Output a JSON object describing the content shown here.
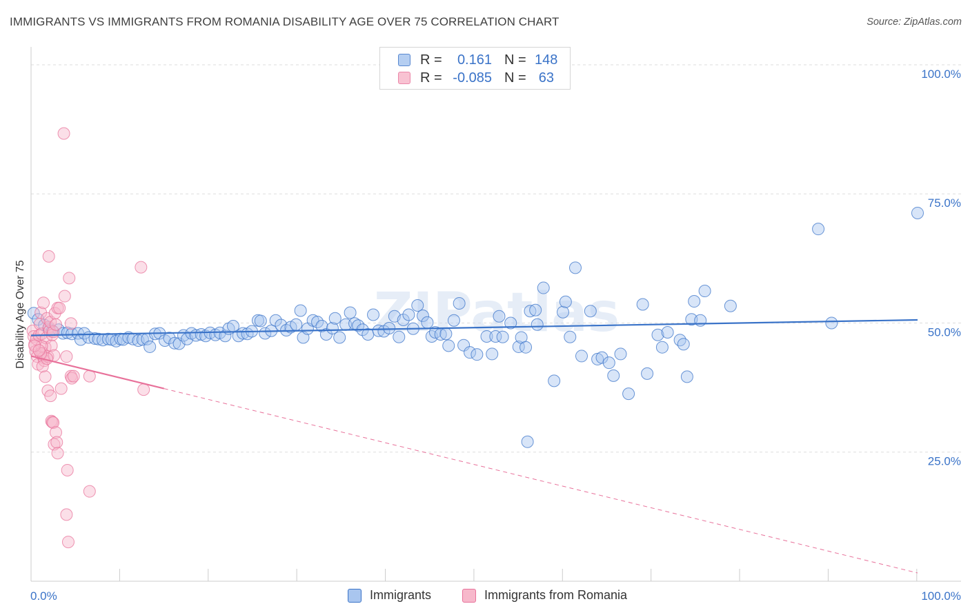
{
  "header": {
    "title": "IMMIGRANTS VS IMMIGRANTS FROM ROMANIA DISABILITY AGE OVER 75 CORRELATION CHART",
    "source": "Source: ZipAtlas.com"
  },
  "legend_stats": {
    "row1": {
      "r_label": "R =",
      "r_value": "0.161",
      "n_label": "N =",
      "n_value": "148"
    },
    "row2": {
      "r_label": "R =",
      "r_value": "-0.085",
      "n_label": "N =",
      "n_value": "63"
    }
  },
  "colors": {
    "blue": "#3a73c8",
    "blue_fill": "#a9c6ef",
    "pink": "#e8719a",
    "pink_fill": "#f7b8cb",
    "grid": "#dddddd",
    "axis_text": "#3a73c8"
  },
  "chart_data": {
    "type": "scatter",
    "title": "IMMIGRANTS VS IMMIGRANTS FROM ROMANIA DISABILITY AGE OVER 75 CORRELATION CHART",
    "xlabel": "",
    "ylabel": "Disability Age Over 75",
    "xlim": [
      0,
      100
    ],
    "ylim": [
      0,
      102
    ],
    "x_tick_labels": [
      "0.0%",
      "100.0%"
    ],
    "y_tick_labels": [
      "25.0%",
      "50.0%",
      "75.0%",
      "100.0%"
    ],
    "y_ticks": [
      25,
      50,
      75,
      100
    ],
    "grid": true,
    "legend_position": "bottom",
    "series": [
      {
        "name": "Immigrants",
        "color": "#3a73c8",
        "trend": {
          "x": [
            0,
            100
          ],
          "y": [
            47.6,
            50.6
          ],
          "dashed_from": null
        },
        "points": [
          [
            0.3,
            51.9
          ],
          [
            0.8,
            50.7
          ],
          [
            1.5,
            49.6
          ],
          [
            2.0,
            48.9
          ],
          [
            2.4,
            48.5
          ],
          [
            3.1,
            48.7
          ],
          [
            3.6,
            48.0
          ],
          [
            4.1,
            48.1
          ],
          [
            4.6,
            47.9
          ],
          [
            5.3,
            48.0
          ],
          [
            5.6,
            46.8
          ],
          [
            6.0,
            48.0
          ],
          [
            6.5,
            47.2
          ],
          [
            7.2,
            47.0
          ],
          [
            7.6,
            46.9
          ],
          [
            8.1,
            46.7
          ],
          [
            8.7,
            46.9
          ],
          [
            9.1,
            46.8
          ],
          [
            9.6,
            46.5
          ],
          [
            10.1,
            46.9
          ],
          [
            10.4,
            46.8
          ],
          [
            11.0,
            47.2
          ],
          [
            11.5,
            46.9
          ],
          [
            12.1,
            46.6
          ],
          [
            12.6,
            46.8
          ],
          [
            13.1,
            46.9
          ],
          [
            13.4,
            45.4
          ],
          [
            14.0,
            47.9
          ],
          [
            14.5,
            48.0
          ],
          [
            15.1,
            46.6
          ],
          [
            15.6,
            47.1
          ],
          [
            16.2,
            46.1
          ],
          [
            16.7,
            46.0
          ],
          [
            17.2,
            47.6
          ],
          [
            17.6,
            46.9
          ],
          [
            18.1,
            48.0
          ],
          [
            18.6,
            47.6
          ],
          [
            19.2,
            47.8
          ],
          [
            19.7,
            47.5
          ],
          [
            20.2,
            48.1
          ],
          [
            20.8,
            47.7
          ],
          [
            21.3,
            48.1
          ],
          [
            21.9,
            47.5
          ],
          [
            22.3,
            48.9
          ],
          [
            22.8,
            49.4
          ],
          [
            23.4,
            47.5
          ],
          [
            23.9,
            48.0
          ],
          [
            24.4,
            47.9
          ],
          [
            24.9,
            48.4
          ],
          [
            25.6,
            50.5
          ],
          [
            25.9,
            50.4
          ],
          [
            26.4,
            48.0
          ],
          [
            27.1,
            48.5
          ],
          [
            27.6,
            50.5
          ],
          [
            28.2,
            49.6
          ],
          [
            28.8,
            48.6
          ],
          [
            29.3,
            49.2
          ],
          [
            29.9,
            49.7
          ],
          [
            30.4,
            52.4
          ],
          [
            30.7,
            47.2
          ],
          [
            31.2,
            48.9
          ],
          [
            31.8,
            50.5
          ],
          [
            32.3,
            50.2
          ],
          [
            32.8,
            49.4
          ],
          [
            33.3,
            47.8
          ],
          [
            34.0,
            49.0
          ],
          [
            34.3,
            50.9
          ],
          [
            34.8,
            47.2
          ],
          [
            35.5,
            49.7
          ],
          [
            36.0,
            52.0
          ],
          [
            36.5,
            49.9
          ],
          [
            36.9,
            49.5
          ],
          [
            37.4,
            48.7
          ],
          [
            38.0,
            47.8
          ],
          [
            38.6,
            51.6
          ],
          [
            39.2,
            48.5
          ],
          [
            39.8,
            48.4
          ],
          [
            40.4,
            49.0
          ],
          [
            41.0,
            51.3
          ],
          [
            41.5,
            47.3
          ],
          [
            42.0,
            50.6
          ],
          [
            42.6,
            51.6
          ],
          [
            43.1,
            48.9
          ],
          [
            43.6,
            53.4
          ],
          [
            44.2,
            51.4
          ],
          [
            44.7,
            50.1
          ],
          [
            45.2,
            47.4
          ],
          [
            45.6,
            48.2
          ],
          [
            46.2,
            47.8
          ],
          [
            46.8,
            47.9
          ],
          [
            47.1,
            45.6
          ],
          [
            47.7,
            50.5
          ],
          [
            48.3,
            53.8
          ],
          [
            48.8,
            45.7
          ],
          [
            49.5,
            44.3
          ],
          [
            50.3,
            43.9
          ],
          [
            51.4,
            47.4
          ],
          [
            52.0,
            44.0
          ],
          [
            52.4,
            47.4
          ],
          [
            52.8,
            51.3
          ],
          [
            53.2,
            47.3
          ],
          [
            54.1,
            50.0
          ],
          [
            55.0,
            45.4
          ],
          [
            55.3,
            47.2
          ],
          [
            55.8,
            45.3
          ],
          [
            56.3,
            52.3
          ],
          [
            56.9,
            52.5
          ],
          [
            57.1,
            49.7
          ],
          [
            57.8,
            56.8
          ],
          [
            59.0,
            38.8
          ],
          [
            60.0,
            52.1
          ],
          [
            60.3,
            54.1
          ],
          [
            60.8,
            47.3
          ],
          [
            61.4,
            60.7
          ],
          [
            62.1,
            43.6
          ],
          [
            63.1,
            52.3
          ],
          [
            63.9,
            43.0
          ],
          [
            64.4,
            43.3
          ],
          [
            65.2,
            42.3
          ],
          [
            65.7,
            39.8
          ],
          [
            66.5,
            44.0
          ],
          [
            67.4,
            36.3
          ],
          [
            69.0,
            53.6
          ],
          [
            69.5,
            40.2
          ],
          [
            70.7,
            47.7
          ],
          [
            71.2,
            45.3
          ],
          [
            71.8,
            48.2
          ],
          [
            73.2,
            46.7
          ],
          [
            73.6,
            45.9
          ],
          [
            74.0,
            39.6
          ],
          [
            74.5,
            50.7
          ],
          [
            74.8,
            54.2
          ],
          [
            75.5,
            50.5
          ],
          [
            76.0,
            56.2
          ],
          [
            78.9,
            53.3
          ],
          [
            56.0,
            27.0
          ],
          [
            88.8,
            68.2
          ],
          [
            90.3,
            50.0
          ],
          [
            100.0,
            71.3
          ]
        ]
      },
      {
        "name": "Immigrants from Romania",
        "color": "#e8719a",
        "trend": {
          "x": [
            0,
            100
          ],
          "y": [
            43.6,
            1.6
          ],
          "solid_until": 15
        },
        "points": [
          [
            0.2,
            48.5
          ],
          [
            0.3,
            47.4
          ],
          [
            0.4,
            45.9
          ],
          [
            0.5,
            44.5
          ],
          [
            0.6,
            46.9
          ],
          [
            0.7,
            43.5
          ],
          [
            0.8,
            42.0
          ],
          [
            0.9,
            47.6
          ],
          [
            1.0,
            49.8
          ],
          [
            1.1,
            52.0
          ],
          [
            1.2,
            47.9
          ],
          [
            1.3,
            44.2
          ],
          [
            1.4,
            43.3
          ],
          [
            1.5,
            42.7
          ],
          [
            1.6,
            45.3
          ],
          [
            1.7,
            47.1
          ],
          [
            1.8,
            50.9
          ],
          [
            1.9,
            43.5
          ],
          [
            2.0,
            49.2
          ],
          [
            2.1,
            48.5
          ],
          [
            2.2,
            50.2
          ],
          [
            2.3,
            45.6
          ],
          [
            2.4,
            47.7
          ],
          [
            2.5,
            48.3
          ],
          [
            2.6,
            43.7
          ],
          [
            2.7,
            51.9
          ],
          [
            2.8,
            49.7
          ],
          [
            3.0,
            52.9
          ],
          [
            1.2,
            45.5
          ],
          [
            1.3,
            41.6
          ],
          [
            1.4,
            53.9
          ],
          [
            1.6,
            39.6
          ],
          [
            1.8,
            43.1
          ],
          [
            1.9,
            36.9
          ],
          [
            2.0,
            62.9
          ],
          [
            2.2,
            35.9
          ],
          [
            2.3,
            31.0
          ],
          [
            2.4,
            30.8
          ],
          [
            2.5,
            30.7
          ],
          [
            2.6,
            26.5
          ],
          [
            2.8,
            28.8
          ],
          [
            2.9,
            26.9
          ],
          [
            3.0,
            24.8
          ],
          [
            3.2,
            52.9
          ],
          [
            3.4,
            37.3
          ],
          [
            3.8,
            55.2
          ],
          [
            4.0,
            12.9
          ],
          [
            4.1,
            21.5
          ],
          [
            4.2,
            7.6
          ],
          [
            4.3,
            58.7
          ],
          [
            4.5,
            49.9
          ],
          [
            4.5,
            39.7
          ],
          [
            4.6,
            39.3
          ],
          [
            4.8,
            39.7
          ],
          [
            6.6,
            39.7
          ],
          [
            6.6,
            17.4
          ],
          [
            3.7,
            86.7
          ],
          [
            12.4,
            60.8
          ],
          [
            12.7,
            37.1
          ],
          [
            4.0,
            43.5
          ],
          [
            1.1,
            44.1
          ],
          [
            0.4,
            45.6
          ],
          [
            0.9,
            44.7
          ]
        ]
      }
    ]
  },
  "bottom_legend": {
    "item1": "Immigrants",
    "item2": "Immigrants from Romania"
  },
  "watermark": "ZIPatlas"
}
